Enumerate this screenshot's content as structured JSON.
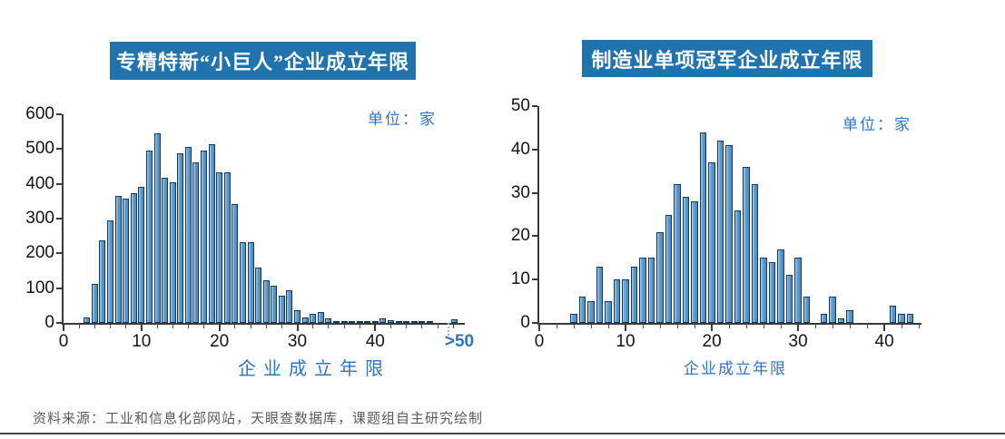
{
  "footer": {
    "source_text": "资料来源：工业和信息化部网站，天眼查数据库，课题组自主研究绘制"
  },
  "colors": {
    "title_bar_bg": "#2173AE",
    "title_text": "#FFFFFF",
    "accent_blue": "#2E74C4",
    "bar_fill": "#5E9ACC",
    "bar_border": "#16395F",
    "axis": "#3A3A3A",
    "footer_text": "#595959"
  },
  "chart_data": [
    {
      "type": "bar",
      "title": "专精特新“小巨人”企业成立年限",
      "unit_label": "单位：家",
      "xlabel": "企业成立年限",
      "ylabel": "",
      "grid": false,
      "legend": "none",
      "ylim": [
        0,
        600
      ],
      "yticks": [
        0,
        100,
        200,
        300,
        400,
        500,
        600
      ],
      "xlim": [
        0,
        51.5
      ],
      "xticks": [
        {
          "pos": 0,
          "label": "0"
        },
        {
          "pos": 10,
          "label": "10"
        },
        {
          "pos": 20,
          "label": "20"
        },
        {
          "pos": 30,
          "label": "30"
        },
        {
          "pos": 40,
          "label": "40"
        },
        {
          "pos": 50.8,
          "label": ">50",
          "accent": true
        }
      ],
      "minor_tick_step": 2,
      "minor_tick_max": 50,
      "axis_break_pos": 49.3,
      "bars": [
        [
          3,
          15
        ],
        [
          4,
          113
        ],
        [
          5,
          237
        ],
        [
          6,
          295
        ],
        [
          7,
          365
        ],
        [
          8,
          358
        ],
        [
          9,
          372
        ],
        [
          10,
          392
        ],
        [
          11,
          496
        ],
        [
          12,
          546
        ],
        [
          13,
          418
        ],
        [
          14,
          405
        ],
        [
          15,
          488
        ],
        [
          16,
          506
        ],
        [
          17,
          463
        ],
        [
          18,
          496
        ],
        [
          19,
          515
        ],
        [
          20,
          434
        ],
        [
          21,
          432
        ],
        [
          22,
          342
        ],
        [
          23,
          233
        ],
        [
          24,
          233
        ],
        [
          25,
          158
        ],
        [
          26,
          122
        ],
        [
          27,
          107
        ],
        [
          28,
          78
        ],
        [
          29,
          93
        ],
        [
          30,
          36
        ],
        [
          31,
          16
        ],
        [
          32,
          26
        ],
        [
          33,
          31
        ],
        [
          34,
          12
        ],
        [
          35,
          5
        ],
        [
          36,
          3
        ],
        [
          37,
          3
        ],
        [
          38,
          5
        ],
        [
          39,
          6
        ],
        [
          40,
          2
        ],
        [
          41,
          12
        ],
        [
          42,
          9
        ],
        [
          43,
          4
        ],
        [
          44,
          2
        ],
        [
          45,
          1
        ],
        [
          46,
          2
        ],
        [
          47,
          1
        ],
        [
          50.2,
          10
        ]
      ]
    },
    {
      "type": "bar",
      "title": "制造业单项冠军企业成立年限",
      "unit_label": "单位：家",
      "xlabel": "企业成立年限",
      "ylabel": "",
      "grid": false,
      "legend": "none",
      "ylim": [
        0,
        50
      ],
      "yticks": [
        0,
        10,
        20,
        30,
        40,
        50
      ],
      "xlim": [
        0,
        44.3
      ],
      "xticks": [
        {
          "pos": 0,
          "label": "0"
        },
        {
          "pos": 10,
          "label": "10"
        },
        {
          "pos": 20,
          "label": "20"
        },
        {
          "pos": 30,
          "label": "30"
        },
        {
          "pos": 40,
          "label": "40"
        }
      ],
      "minor_tick_step": 2,
      "minor_tick_max": 44,
      "bars": [
        [
          4,
          2
        ],
        [
          5,
          6
        ],
        [
          6,
          5
        ],
        [
          7,
          13
        ],
        [
          8,
          5
        ],
        [
          9,
          10
        ],
        [
          10,
          10
        ],
        [
          11,
          13
        ],
        [
          12,
          15
        ],
        [
          13,
          15
        ],
        [
          14,
          21
        ],
        [
          15,
          25
        ],
        [
          16,
          32
        ],
        [
          17,
          29
        ],
        [
          18,
          28
        ],
        [
          19,
          44
        ],
        [
          20,
          37
        ],
        [
          21,
          42
        ],
        [
          22,
          41
        ],
        [
          23,
          26
        ],
        [
          24,
          36
        ],
        [
          25,
          32
        ],
        [
          26,
          15
        ],
        [
          27,
          14
        ],
        [
          28,
          17
        ],
        [
          29,
          11
        ],
        [
          30,
          15
        ],
        [
          31,
          6
        ],
        [
          33,
          2
        ],
        [
          34,
          6
        ],
        [
          35,
          1
        ],
        [
          36,
          3
        ],
        [
          41,
          4
        ],
        [
          42,
          2
        ],
        [
          43,
          2
        ]
      ]
    }
  ]
}
